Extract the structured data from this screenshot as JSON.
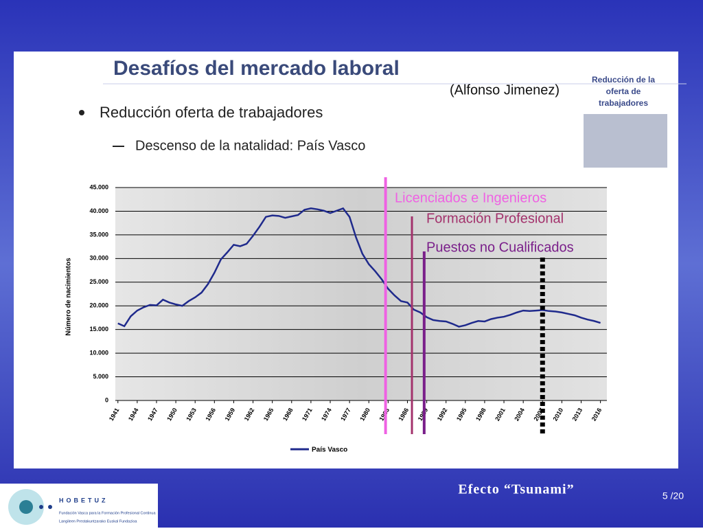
{
  "slide": {
    "title": "Desafíos del mercado laboral",
    "author": "(Alfonso Jimenez)",
    "bullet": "Reducción oferta de trabajadores",
    "sub_bullet": "Descenso de la natalidad: País Vasco",
    "side_caption": [
      "Reducción de la",
      "oferta de",
      "trabajadores"
    ],
    "footer": "Efecto “Tsunami”",
    "page": "5 /20",
    "logo": {
      "name": "HOBETUZ",
      "line1": "Fundación Vasca para la Formación Profesional Continua",
      "line2": "Langileen Prestakuntzarako Euskal Fundazioa"
    }
  },
  "chart_data": {
    "type": "line",
    "y_label": "Número de nacimientos",
    "x": [
      1941,
      1942,
      1943,
      1944,
      1945,
      1946,
      1947,
      1948,
      1949,
      1950,
      1951,
      1952,
      1953,
      1954,
      1955,
      1956,
      1957,
      1958,
      1959,
      1960,
      1961,
      1962,
      1963,
      1964,
      1965,
      1966,
      1967,
      1968,
      1969,
      1970,
      1971,
      1972,
      1973,
      1974,
      1975,
      1976,
      1977,
      1978,
      1979,
      1980,
      1981,
      1982,
      1983,
      1984,
      1985,
      1986,
      1987,
      1988,
      1989,
      1990,
      1991,
      1992,
      1993,
      1994,
      1995,
      1996,
      1997,
      1998,
      1999,
      2000,
      2001,
      2002,
      2003,
      2004,
      2005,
      2006,
      2007,
      2008,
      2009,
      2010,
      2011,
      2012,
      2013,
      2014,
      2015,
      2016
    ],
    "series": [
      {
        "name": "País Vasco",
        "color": "#1f2a8c",
        "values": [
          16300,
          15700,
          17800,
          19000,
          19700,
          20200,
          20100,
          21300,
          20700,
          20300,
          20000,
          21000,
          21800,
          22800,
          24600,
          27000,
          29800,
          31300,
          32900,
          32600,
          33100,
          34800,
          36700,
          38800,
          39100,
          39000,
          38600,
          38900,
          39200,
          40300,
          40600,
          40400,
          40100,
          39600,
          40100,
          40600,
          38800,
          34500,
          31000,
          28800,
          27300,
          25600,
          23600,
          22200,
          21000,
          20700,
          19200,
          18600,
          17600,
          17000,
          16800,
          16700,
          16200,
          15600,
          15900,
          16400,
          16800,
          16700,
          17200,
          17500,
          17700,
          18100,
          18600,
          19000,
          18900,
          19000,
          19100,
          18900,
          18800,
          18600,
          18300,
          18000,
          17500,
          17100,
          16800,
          16400
        ]
      }
    ],
    "xlim": [
      1940.6,
      2017
    ],
    "xticks": [
      1941,
      1944,
      1947,
      1950,
      1953,
      1956,
      1959,
      1962,
      1965,
      1968,
      1971,
      1974,
      1977,
      1980,
      1983,
      1986,
      1989,
      1992,
      1995,
      1998,
      2001,
      2004,
      2007,
      2010,
      2013,
      2016
    ],
    "ylim": [
      0,
      45000
    ],
    "yticks": [
      0,
      {
        "value": 5000,
        "label": "5.000"
      },
      {
        "value": 10000,
        "label": "10.000"
      },
      {
        "value": 15000,
        "label": "15.000"
      },
      {
        "value": 20000,
        "label": "20.000"
      },
      {
        "value": 25000,
        "label": "25.000"
      },
      {
        "value": 30000,
        "label": "30.000"
      },
      {
        "value": 35000,
        "label": "35.000"
      },
      {
        "value": 40000,
        "label": "40.000"
      },
      {
        "value": 45000,
        "label": "45.000"
      }
    ],
    "grid": true,
    "markers": [
      {
        "x": 1982.6,
        "label": "Licenciados e Ingenieros",
        "color": "#ef62e3"
      },
      {
        "x": 1986.7,
        "label": "Formación Profesional",
        "color": "#a3326c"
      },
      {
        "x": 1988.6,
        "label": "Puestos no Cualificados",
        "color": "#7a1f8a"
      },
      {
        "x": 2007,
        "color": "#000000"
      }
    ]
  }
}
